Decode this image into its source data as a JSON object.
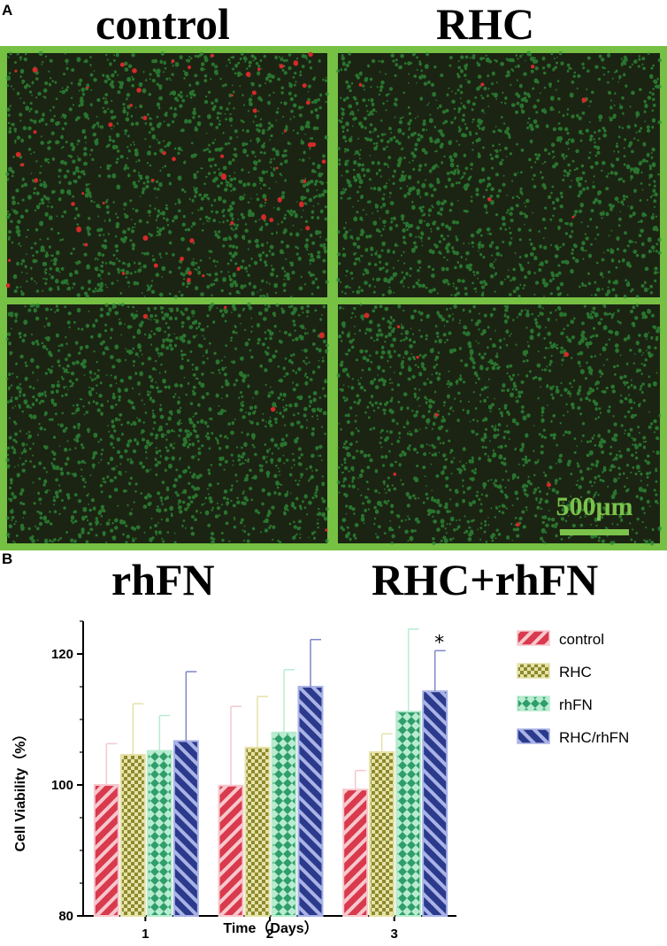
{
  "panel_a": {
    "letter": "A",
    "labels": {
      "top_left": "control",
      "top_right": "RHC",
      "bottom_left": "rhFN",
      "bottom_right": "RHC+rhFN"
    },
    "scale_bar_text": "500μm",
    "colors": {
      "frame": "#76c043",
      "background": "#1b2412",
      "live_cells": "#2f8f3a",
      "dead_cells": "#d42a2a",
      "scale_bar": "#7bc24a"
    }
  },
  "panel_b": {
    "letter": "B"
  },
  "chart_data": {
    "type": "bar",
    "xlabel": "Time（Days）",
    "ylabel": "Cell Viability（%）",
    "categories": [
      "1",
      "2",
      "3"
    ],
    "ylim": [
      80,
      125
    ],
    "yticks": [
      80,
      100,
      120
    ],
    "legend_position": "right",
    "series": [
      {
        "name": "control",
        "values": [
          100.0,
          99.9,
          99.3
        ],
        "errors": [
          6.3,
          12.1,
          2.9
        ],
        "fill": "#d93a4d",
        "stripe": "#f6c8cd",
        "pattern": "diagonal-left"
      },
      {
        "name": "RHC",
        "values": [
          104.6,
          105.7,
          105.0
        ],
        "errors": [
          7.8,
          7.8,
          2.8
        ],
        "fill": "#8d8a2e",
        "stripe": "#e6e2a8",
        "pattern": "checker"
      },
      {
        "name": "rhFN",
        "values": [
          105.2,
          108.0,
          111.2
        ],
        "errors": [
          5.4,
          9.6,
          12.6
        ],
        "fill": "#2f9e6a",
        "stripe": "#b8ecd0",
        "pattern": "diamond"
      },
      {
        "name": "RHC/rhFN",
        "values": [
          106.7,
          115.0,
          114.3
        ],
        "errors": [
          10.6,
          7.2,
          6.2
        ],
        "fill": "#2c3a8c",
        "stripe": "#aab3e6",
        "pattern": "diagonal-right"
      }
    ],
    "annotations": [
      {
        "category": "3",
        "series": "RHC/rhFN",
        "text": "*"
      }
    ]
  }
}
